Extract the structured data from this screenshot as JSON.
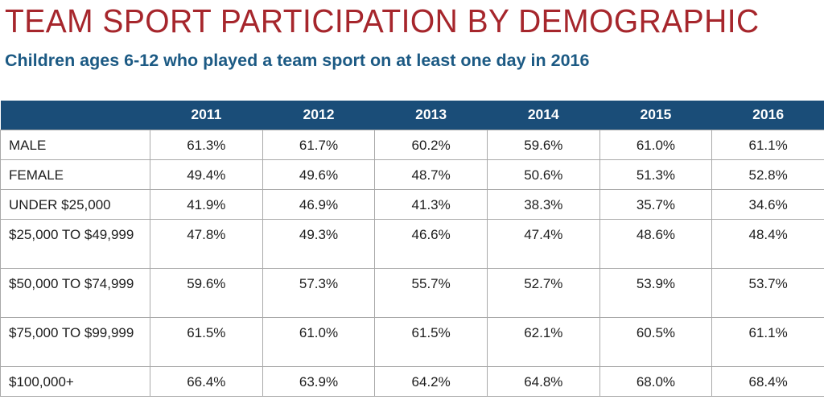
{
  "title": "TEAM SPORT PARTICIPATION BY DEMOGRAPHIC",
  "subtitle": "Children ages 6-12 who played a team sport on at least one day in 2016",
  "table": {
    "corner": "",
    "columns": [
      "2011",
      "2012",
      "2013",
      "2014",
      "2015",
      "2016"
    ],
    "rows": [
      {
        "label": "MALE",
        "values": [
          "61.3%",
          "61.7%",
          "60.2%",
          "59.6%",
          "61.0%",
          "61.1%"
        ]
      },
      {
        "label": "FEMALE",
        "values": [
          "49.4%",
          "49.6%",
          "48.7%",
          "50.6%",
          "51.3%",
          "52.8%"
        ]
      },
      {
        "label": "UNDER $25,000",
        "values": [
          "41.9%",
          "46.9%",
          "41.3%",
          "38.3%",
          "35.7%",
          "34.6%"
        ]
      },
      {
        "label": "$25,000 TO $49,999",
        "values": [
          "47.8%",
          "49.3%",
          "46.6%",
          "47.4%",
          "48.6%",
          "48.4%"
        ]
      },
      {
        "label": "$50,000 TO $74,999",
        "values": [
          "59.6%",
          "57.3%",
          "55.7%",
          "52.7%",
          "53.9%",
          "53.7%"
        ]
      },
      {
        "label": "$75,000 TO $99,999",
        "values": [
          "61.5%",
          "61.0%",
          "61.5%",
          "62.1%",
          "60.5%",
          "61.1%"
        ]
      },
      {
        "label": "$100,000+",
        "values": [
          "66.4%",
          "63.9%",
          "64.2%",
          "64.8%",
          "68.0%",
          "68.4%"
        ]
      }
    ]
  },
  "colors": {
    "title": "#a6262c",
    "subtitle": "#1c5a84",
    "header_background": "#1a4d78",
    "header_text": "#ffffff",
    "grid": "#a9a9a9"
  }
}
